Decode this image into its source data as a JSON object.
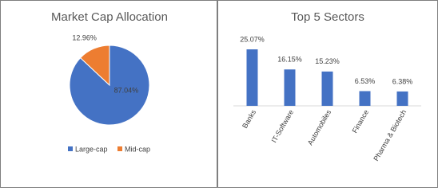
{
  "chart_data": [
    {
      "type": "pie",
      "title": "Market Cap Allocation",
      "categories": [
        "Large-cap",
        "Mid-cap"
      ],
      "values": [
        87.04,
        12.96
      ],
      "value_labels": [
        "87.04%",
        "12.96%"
      ],
      "colors": [
        "#4472c4",
        "#ed7d31"
      ],
      "legend": "bottom"
    },
    {
      "type": "bar",
      "title": "Top 5 Sectors",
      "categories": [
        "Banks",
        "IT-Software",
        "Automobiles",
        "Finance",
        "Pharma & Biotech"
      ],
      "values": [
        25.07,
        16.15,
        15.23,
        6.53,
        6.38
      ],
      "value_labels": [
        "25.07%",
        "16.15%",
        "15.23%",
        "6.53%",
        "6.38%"
      ],
      "color": "#4472c4"
    }
  ]
}
